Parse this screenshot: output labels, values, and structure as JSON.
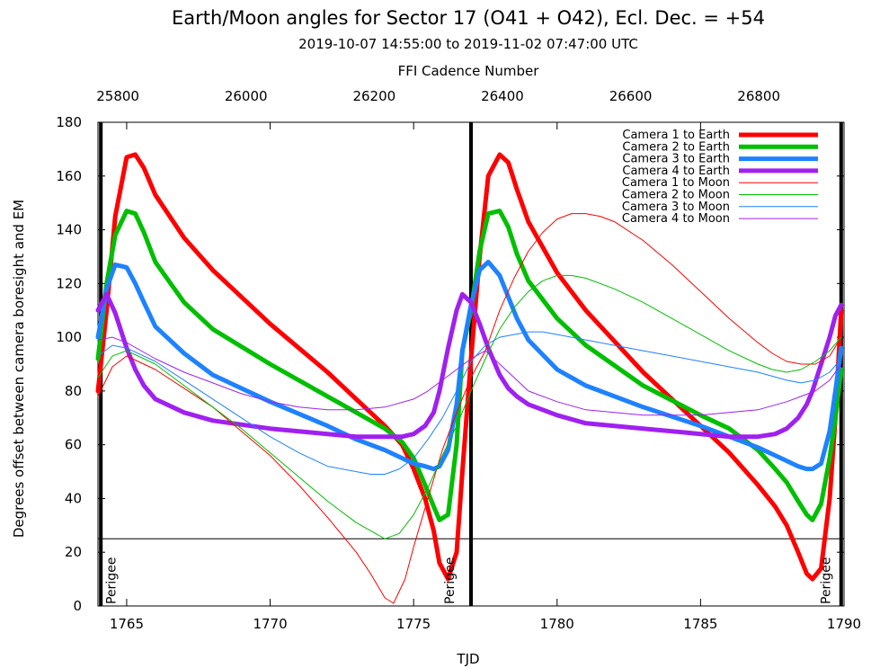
{
  "chart_data": {
    "type": "line",
    "title": "Earth/Moon angles for Sector 17 (O41 + O42), Ecl. Dec. = +54",
    "subtitle": "2019-10-07 14:55:00 to 2019-11-02 07:47:00 UTC",
    "xlabel": "TJD",
    "ylabel": "Degrees offset between camera boresight and EM",
    "x2label": "FFI Cadence Number",
    "xlim": [
      1764,
      1790
    ],
    "ylim": [
      0,
      180
    ],
    "x2lim": [
      25769,
      26933
    ],
    "xticks": [
      1765,
      1770,
      1775,
      1780,
      1785,
      1790
    ],
    "yticks": [
      0,
      20,
      40,
      60,
      80,
      100,
      120,
      140,
      160,
      180
    ],
    "x2ticks": [
      25800,
      26000,
      26200,
      26400,
      26600,
      26800
    ],
    "hlines": [
      25
    ],
    "vlines": [
      1764.1,
      1777.0,
      1789.9
    ],
    "annotations": [
      {
        "text": "Perigee",
        "x": 1764.2,
        "y": 0
      },
      {
        "text": "Perigee",
        "x": 1776.0,
        "y": 0
      },
      {
        "text": "Perigee",
        "x": 1789.1,
        "y": 0
      }
    ],
    "legend_position": "top-right",
    "series": [
      {
        "name": "Camera 1 to Earth",
        "color": "#ff0000",
        "width": "thick",
        "x": [
          1764.0,
          1764.3,
          1764.6,
          1765.0,
          1765.3,
          1765.6,
          1766.0,
          1767.0,
          1768.0,
          1770.0,
          1772.0,
          1773.0,
          1774.0,
          1774.6,
          1775.0,
          1775.4,
          1775.7,
          1775.9,
          1776.2,
          1776.5,
          1776.7,
          1777.0,
          1777.3,
          1777.6,
          1778.0,
          1778.3,
          1778.6,
          1779.0,
          1780.0,
          1781.0,
          1783.0,
          1785.0,
          1786.0,
          1787.0,
          1787.6,
          1788.0,
          1788.4,
          1788.7,
          1788.9,
          1789.2,
          1789.5,
          1789.7,
          1789.9
        ],
        "y": [
          80,
          110,
          145,
          167,
          168,
          163,
          153,
          137,
          125,
          105,
          87,
          77,
          67,
          60,
          51,
          40,
          28,
          16,
          10,
          20,
          50,
          92,
          130,
          160,
          168,
          165,
          155,
          143,
          124,
          110,
          87,
          67,
          57,
          45,
          37,
          30,
          20,
          12,
          10,
          14,
          40,
          70,
          110
        ]
      },
      {
        "name": "Camera 2 to Earth",
        "color": "#00bf00",
        "width": "thick",
        "x": [
          1764.0,
          1764.3,
          1764.6,
          1765.0,
          1765.3,
          1765.6,
          1766.0,
          1767.0,
          1768.0,
          1770.0,
          1772.0,
          1773.0,
          1774.0,
          1774.6,
          1775.0,
          1775.4,
          1775.7,
          1775.9,
          1776.2,
          1776.5,
          1776.7,
          1777.0,
          1777.3,
          1777.6,
          1778.0,
          1778.3,
          1778.6,
          1779.0,
          1780.0,
          1781.0,
          1783.0,
          1785.0,
          1786.0,
          1787.0,
          1787.6,
          1788.0,
          1788.4,
          1788.7,
          1788.9,
          1789.2,
          1789.5,
          1789.7,
          1789.9
        ],
        "y": [
          92,
          120,
          138,
          147,
          146,
          139,
          128,
          113,
          103,
          90,
          78,
          72,
          66,
          61,
          55,
          45,
          37,
          32,
          34,
          60,
          95,
          110,
          132,
          146,
          147,
          141,
          131,
          121,
          107,
          97,
          82,
          71,
          66,
          58,
          51,
          46,
          39,
          34,
          32,
          38,
          55,
          70,
          88
        ]
      },
      {
        "name": "Camera 3 to Earth",
        "color": "#1e82ff",
        "width": "thick",
        "x": [
          1764.0,
          1764.3,
          1764.6,
          1765.0,
          1765.3,
          1765.6,
          1766.0,
          1767.0,
          1768.0,
          1770.0,
          1772.0,
          1773.0,
          1774.0,
          1774.6,
          1775.0,
          1775.4,
          1775.7,
          1775.9,
          1776.2,
          1776.5,
          1776.7,
          1777.0,
          1777.3,
          1777.6,
          1778.0,
          1778.3,
          1778.6,
          1779.0,
          1780.0,
          1781.0,
          1783.0,
          1785.0,
          1786.0,
          1787.0,
          1787.6,
          1788.0,
          1788.4,
          1788.7,
          1788.9,
          1789.2,
          1789.5,
          1789.7,
          1789.9
        ],
        "y": [
          100,
          118,
          127,
          126,
          120,
          113,
          104,
          94,
          86,
          76,
          67,
          62,
          58,
          55,
          53,
          52,
          51,
          52,
          58,
          75,
          95,
          112,
          125,
          128,
          123,
          115,
          107,
          99,
          88,
          82,
          74,
          67,
          63,
          59,
          56,
          54,
          52,
          51,
          51,
          53,
          65,
          80,
          96
        ]
      },
      {
        "name": "Camera 4 to Earth",
        "color": "#a020f0",
        "width": "thick",
        "x": [
          1764.0,
          1764.3,
          1764.6,
          1765.0,
          1765.3,
          1765.6,
          1766.0,
          1767.0,
          1768.0,
          1770.0,
          1772.0,
          1773.0,
          1774.0,
          1774.6,
          1775.0,
          1775.4,
          1775.7,
          1775.9,
          1776.2,
          1776.5,
          1776.7,
          1777.0,
          1777.3,
          1777.6,
          1778.0,
          1778.3,
          1778.6,
          1779.0,
          1780.0,
          1781.0,
          1783.0,
          1785.0,
          1786.0,
          1787.0,
          1787.6,
          1788.0,
          1788.4,
          1788.7,
          1788.9,
          1789.2,
          1789.5,
          1789.7,
          1789.9
        ],
        "y": [
          110,
          116,
          109,
          96,
          88,
          82,
          77,
          72,
          69,
          66,
          64,
          63,
          63,
          63,
          64,
          67,
          72,
          80,
          96,
          110,
          116,
          113,
          105,
          96,
          86,
          81,
          78,
          75,
          71,
          68,
          66,
          64,
          63,
          63,
          64,
          66,
          70,
          75,
          80,
          90,
          100,
          108,
          112
        ]
      },
      {
        "name": "Camera 1 to Moon",
        "color": "#ff0000",
        "width": "thin",
        "x": [
          1764.0,
          1764.5,
          1765.0,
          1766.0,
          1767.0,
          1768.0,
          1769.0,
          1770.0,
          1771.0,
          1772.0,
          1773.0,
          1773.5,
          1774.0,
          1774.3,
          1774.7,
          1775.0,
          1775.5,
          1776.0,
          1776.5,
          1777.0,
          1777.5,
          1778.0,
          1778.5,
          1779.0,
          1779.5,
          1780.0,
          1780.5,
          1781.0,
          1781.5,
          1782.0,
          1783.0,
          1784.0,
          1785.0,
          1786.0,
          1787.0,
          1787.5,
          1788.0,
          1788.5,
          1789.0,
          1789.5,
          1789.9
        ],
        "y": [
          78,
          89,
          93,
          88,
          81,
          74,
          65,
          56,
          45,
          33,
          20,
          12,
          3,
          1,
          10,
          22,
          40,
          58,
          72,
          85,
          95,
          110,
          122,
          132,
          139,
          144,
          146,
          146,
          145,
          143,
          136,
          127,
          117,
          107,
          98,
          94,
          91,
          90,
          90,
          93,
          100
        ]
      },
      {
        "name": "Camera 2 to Moon",
        "color": "#00bf00",
        "width": "thin",
        "x": [
          1764.0,
          1764.5,
          1765.0,
          1766.0,
          1767.0,
          1768.0,
          1769.0,
          1770.0,
          1771.0,
          1772.0,
          1773.0,
          1773.5,
          1774.0,
          1774.5,
          1775.0,
          1775.5,
          1776.0,
          1776.5,
          1777.0,
          1777.5,
          1778.0,
          1778.5,
          1779.0,
          1779.5,
          1780.0,
          1780.5,
          1781.0,
          1782.0,
          1783.0,
          1784.0,
          1785.0,
          1786.0,
          1787.0,
          1787.5,
          1788.0,
          1788.5,
          1789.0,
          1789.5,
          1789.9
        ],
        "y": [
          85,
          93,
          95,
          90,
          82,
          74,
          66,
          57,
          48,
          39,
          31,
          28,
          25,
          27,
          34,
          44,
          56,
          67,
          80,
          92,
          103,
          111,
          117,
          121,
          123,
          123,
          122,
          118,
          113,
          107,
          101,
          95,
          90,
          88,
          87,
          88,
          91,
          95,
          100
        ]
      },
      {
        "name": "Camera 3 to Moon",
        "color": "#1e82ff",
        "width": "thin",
        "x": [
          1764.0,
          1764.5,
          1765.0,
          1766.0,
          1767.0,
          1768.0,
          1769.0,
          1770.0,
          1771.0,
          1772.0,
          1773.0,
          1773.5,
          1774.0,
          1774.5,
          1775.0,
          1775.5,
          1776.0,
          1776.5,
          1777.0,
          1777.5,
          1778.0,
          1778.5,
          1779.0,
          1779.5,
          1780.0,
          1781.0,
          1782.0,
          1783.0,
          1784.0,
          1785.0,
          1786.0,
          1787.0,
          1788.0,
          1788.5,
          1789.0,
          1789.5,
          1789.9
        ],
        "y": [
          93,
          97,
          96,
          91,
          84,
          77,
          70,
          63,
          57,
          52,
          50,
          49,
          49,
          51,
          55,
          62,
          70,
          80,
          91,
          97,
          100,
          101,
          102,
          102,
          101,
          99,
          97,
          95,
          93,
          91,
          89,
          87,
          84,
          83,
          84,
          87,
          92
        ]
      },
      {
        "name": "Camera 4 to Moon",
        "color": "#a020f0",
        "width": "thin",
        "x": [
          1764.0,
          1764.5,
          1765.0,
          1766.0,
          1767.0,
          1768.0,
          1769.0,
          1770.0,
          1771.0,
          1772.0,
          1773.0,
          1774.0,
          1775.0,
          1775.5,
          1776.0,
          1776.5,
          1777.0,
          1777.5,
          1778.0,
          1778.5,
          1779.0,
          1780.0,
          1781.0,
          1782.0,
          1783.0,
          1784.0,
          1785.0,
          1786.0,
          1787.0,
          1788.0,
          1788.5,
          1789.0,
          1789.5,
          1789.9
        ],
        "y": [
          99,
          100,
          98,
          92,
          87,
          83,
          79,
          76,
          74,
          73,
          73,
          74,
          77,
          80,
          84,
          88,
          92,
          95,
          90,
          85,
          80,
          76,
          73,
          72,
          71,
          71,
          71,
          72,
          73,
          76,
          78,
          80,
          84,
          90
        ]
      }
    ]
  }
}
